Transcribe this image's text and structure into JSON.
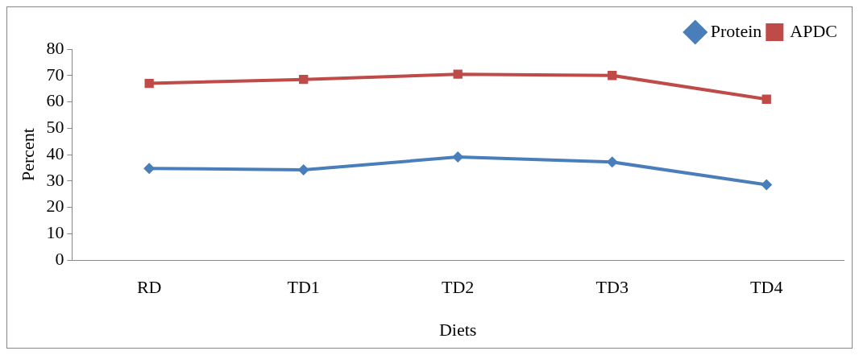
{
  "chart_data": {
    "type": "line",
    "xlabel": "Diets",
    "ylabel": "Percent",
    "categories": [
      "RD",
      "TD1",
      "TD2",
      "TD3",
      "TD4"
    ],
    "series": [
      {
        "name": "Protein",
        "color": "#4a7ebb",
        "marker": "diamond",
        "values": [
          34.8,
          34.2,
          39.1,
          37.2,
          28.6
        ]
      },
      {
        "name": "APDC",
        "color": "#be4b48",
        "marker": "square",
        "values": [
          67.0,
          68.5,
          70.5,
          70.0,
          61.0
        ]
      }
    ],
    "ylim": [
      0,
      80
    ],
    "yticks": [
      0,
      10,
      20,
      30,
      40,
      50,
      60,
      70,
      80
    ],
    "grid": false,
    "legend": "top right",
    "line_style": "solid"
  }
}
